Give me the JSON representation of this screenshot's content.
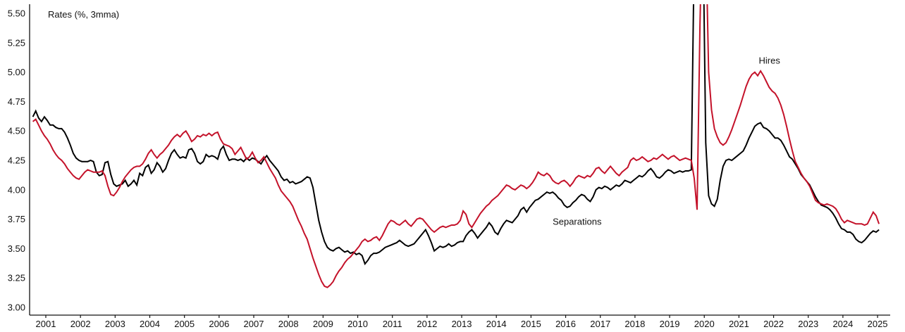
{
  "chart_data": {
    "type": "line",
    "title": "Rates (%, 3mma)",
    "xlabel": "",
    "ylabel": "",
    "grid": false,
    "legend_position": "inline-annotations",
    "ylim": [
      3.0,
      5.5
    ],
    "y_ticks": [
      3.0,
      3.25,
      3.5,
      3.75,
      4.0,
      4.25,
      4.5,
      4.75,
      5.0,
      5.25,
      5.5
    ],
    "y_tick_labels": [
      "3.00",
      "3.25",
      "3.50",
      "3.75",
      "4.00",
      "4.25",
      "4.50",
      "4.75",
      "5.00",
      "5.25",
      "5.50"
    ],
    "x_tick_labels": [
      "2001",
      "2002",
      "2003",
      "2004",
      "2005",
      "2006",
      "2007",
      "2008",
      "2009",
      "2010",
      "2011",
      "2012",
      "2013",
      "2014",
      "2015",
      "2016",
      "2017",
      "2018",
      "2019",
      "2020",
      "2021",
      "2022",
      "2023",
      "2024",
      "2025"
    ],
    "frequency": "monthly",
    "x_start_decimal_year": 2001.125,
    "clip_note": "2020 pandemic spike exceeds axis maximum and is clipped at plot top",
    "annotations": [
      {
        "text": "Hires",
        "x": 2022.38,
        "y": 5.1
      },
      {
        "text": "Separations",
        "x": 2016.83,
        "y": 3.73
      }
    ],
    "series": [
      {
        "name": "Hires",
        "color": "#c4122a",
        "values": [
          4.58,
          4.6,
          4.55,
          4.5,
          4.46,
          4.43,
          4.39,
          4.34,
          4.3,
          4.27,
          4.25,
          4.22,
          4.18,
          4.15,
          4.12,
          4.1,
          4.09,
          4.12,
          4.15,
          4.17,
          4.16,
          4.15,
          4.15,
          4.15,
          4.16,
          4.12,
          4.03,
          3.96,
          3.95,
          3.98,
          4.02,
          4.07,
          4.11,
          4.14,
          4.17,
          4.19,
          4.2,
          4.2,
          4.22,
          4.26,
          4.31,
          4.34,
          4.3,
          4.27,
          4.3,
          4.32,
          4.35,
          4.38,
          4.42,
          4.45,
          4.47,
          4.45,
          4.48,
          4.5,
          4.46,
          4.41,
          4.43,
          4.46,
          4.45,
          4.47,
          4.46,
          4.48,
          4.46,
          4.48,
          4.49,
          4.43,
          4.39,
          4.38,
          4.37,
          4.35,
          4.3,
          4.33,
          4.36,
          4.31,
          4.26,
          4.28,
          4.32,
          4.27,
          4.23,
          4.25,
          4.28,
          4.23,
          4.18,
          4.14,
          4.1,
          4.04,
          3.99,
          3.96,
          3.93,
          3.9,
          3.86,
          3.8,
          3.74,
          3.69,
          3.63,
          3.58,
          3.5,
          3.42,
          3.35,
          3.28,
          3.22,
          3.18,
          3.17,
          3.19,
          3.22,
          3.27,
          3.31,
          3.34,
          3.38,
          3.41,
          3.43,
          3.46,
          3.49,
          3.52,
          3.56,
          3.58,
          3.56,
          3.57,
          3.59,
          3.6,
          3.57,
          3.61,
          3.66,
          3.71,
          3.74,
          3.73,
          3.71,
          3.7,
          3.72,
          3.74,
          3.71,
          3.69,
          3.72,
          3.75,
          3.76,
          3.75,
          3.72,
          3.69,
          3.66,
          3.64,
          3.66,
          3.68,
          3.69,
          3.68,
          3.69,
          3.7,
          3.7,
          3.71,
          3.74,
          3.82,
          3.79,
          3.71,
          3.68,
          3.72,
          3.76,
          3.8,
          3.83,
          3.86,
          3.88,
          3.91,
          3.93,
          3.95,
          3.98,
          4.01,
          4.04,
          4.03,
          4.01,
          4.0,
          4.02,
          4.04,
          4.03,
          4.01,
          4.03,
          4.06,
          4.1,
          4.15,
          4.13,
          4.12,
          4.14,
          4.12,
          4.08,
          4.06,
          4.05,
          4.07,
          4.08,
          4.06,
          4.03,
          4.06,
          4.1,
          4.12,
          4.11,
          4.1,
          4.12,
          4.11,
          4.14,
          4.18,
          4.19,
          4.16,
          4.14,
          4.17,
          4.2,
          4.17,
          4.14,
          4.12,
          4.15,
          4.17,
          4.19,
          4.25,
          4.27,
          4.25,
          4.26,
          4.28,
          4.26,
          4.24,
          4.25,
          4.27,
          4.26,
          4.28,
          4.3,
          4.28,
          4.26,
          4.28,
          4.29,
          4.27,
          4.25,
          4.26,
          4.27,
          4.26,
          4.25,
          4.1,
          3.83,
          5.4,
          6.5,
          6.2,
          5.0,
          4.68,
          4.52,
          4.45,
          4.4,
          4.38,
          4.4,
          4.45,
          4.51,
          4.58,
          4.65,
          4.72,
          4.8,
          4.88,
          4.94,
          4.98,
          5.0,
          4.97,
          5.01,
          4.97,
          4.92,
          4.87,
          4.84,
          4.82,
          4.78,
          4.72,
          4.64,
          4.54,
          4.43,
          4.33,
          4.24,
          4.19,
          4.14,
          4.1,
          4.07,
          4.03,
          3.97,
          3.91,
          3.89,
          3.88,
          3.87,
          3.88,
          3.87,
          3.86,
          3.84,
          3.8,
          3.75,
          3.72,
          3.74,
          3.73,
          3.72,
          3.71,
          3.71,
          3.71,
          3.7,
          3.71,
          3.76,
          3.81,
          3.78,
          3.71
        ]
      },
      {
        "name": "Separations",
        "color": "#000000",
        "values": [
          4.62,
          4.67,
          4.61,
          4.58,
          4.62,
          4.59,
          4.55,
          4.55,
          4.53,
          4.52,
          4.52,
          4.49,
          4.44,
          4.38,
          4.31,
          4.27,
          4.25,
          4.24,
          4.24,
          4.24,
          4.25,
          4.24,
          4.15,
          4.12,
          4.13,
          4.23,
          4.24,
          4.13,
          4.05,
          4.03,
          4.04,
          4.05,
          4.08,
          4.03,
          4.05,
          4.08,
          4.04,
          4.14,
          4.12,
          4.19,
          4.21,
          4.14,
          4.17,
          4.23,
          4.2,
          4.15,
          4.18,
          4.25,
          4.31,
          4.34,
          4.3,
          4.27,
          4.28,
          4.27,
          4.34,
          4.35,
          4.31,
          4.24,
          4.22,
          4.24,
          4.3,
          4.28,
          4.29,
          4.28,
          4.26,
          4.34,
          4.37,
          4.3,
          4.25,
          4.26,
          4.26,
          4.25,
          4.26,
          4.24,
          4.27,
          4.25,
          4.27,
          4.26,
          4.24,
          4.22,
          4.26,
          4.29,
          4.25,
          4.22,
          4.19,
          4.16,
          4.11,
          4.08,
          4.09,
          4.06,
          4.07,
          4.05,
          4.06,
          4.07,
          4.09,
          4.11,
          4.1,
          4.02,
          3.88,
          3.74,
          3.64,
          3.56,
          3.51,
          3.49,
          3.48,
          3.5,
          3.51,
          3.49,
          3.47,
          3.48,
          3.46,
          3.47,
          3.45,
          3.46,
          3.44,
          3.37,
          3.4,
          3.44,
          3.46,
          3.46,
          3.47,
          3.49,
          3.51,
          3.52,
          3.53,
          3.54,
          3.55,
          3.57,
          3.55,
          3.53,
          3.52,
          3.53,
          3.54,
          3.57,
          3.6,
          3.63,
          3.66,
          3.61,
          3.55,
          3.48,
          3.5,
          3.52,
          3.51,
          3.52,
          3.54,
          3.52,
          3.53,
          3.55,
          3.56,
          3.56,
          3.61,
          3.64,
          3.66,
          3.63,
          3.59,
          3.62,
          3.65,
          3.68,
          3.72,
          3.69,
          3.64,
          3.62,
          3.67,
          3.71,
          3.74,
          3.73,
          3.72,
          3.75,
          3.78,
          3.83,
          3.85,
          3.81,
          3.85,
          3.88,
          3.91,
          3.92,
          3.94,
          3.96,
          3.98,
          3.97,
          3.98,
          3.96,
          3.93,
          3.91,
          3.87,
          3.85,
          3.86,
          3.89,
          3.91,
          3.94,
          3.96,
          3.95,
          3.92,
          3.9,
          3.94,
          4.0,
          4.02,
          4.01,
          4.03,
          4.02,
          4.0,
          4.02,
          4.04,
          4.03,
          4.05,
          4.08,
          4.07,
          4.06,
          4.08,
          4.1,
          4.12,
          4.11,
          4.13,
          4.16,
          4.18,
          4.15,
          4.11,
          4.1,
          4.12,
          4.15,
          4.17,
          4.16,
          4.14,
          4.15,
          4.16,
          4.15,
          4.16,
          4.16,
          4.17,
          6.0,
          7.5,
          7.0,
          6.3,
          4.4,
          3.95,
          3.88,
          3.86,
          3.92,
          4.08,
          4.2,
          4.25,
          4.26,
          4.25,
          4.27,
          4.29,
          4.31,
          4.33,
          4.38,
          4.44,
          4.49,
          4.54,
          4.56,
          4.57,
          4.53,
          4.52,
          4.5,
          4.47,
          4.44,
          4.44,
          4.42,
          4.38,
          4.33,
          4.28,
          4.26,
          4.22,
          4.18,
          4.13,
          4.1,
          4.07,
          4.04,
          3.99,
          3.94,
          3.9,
          3.87,
          3.86,
          3.85,
          3.83,
          3.8,
          3.76,
          3.71,
          3.67,
          3.66,
          3.64,
          3.64,
          3.62,
          3.58,
          3.56,
          3.55,
          3.57,
          3.6,
          3.63,
          3.65,
          3.64,
          3.66
        ]
      }
    ]
  }
}
